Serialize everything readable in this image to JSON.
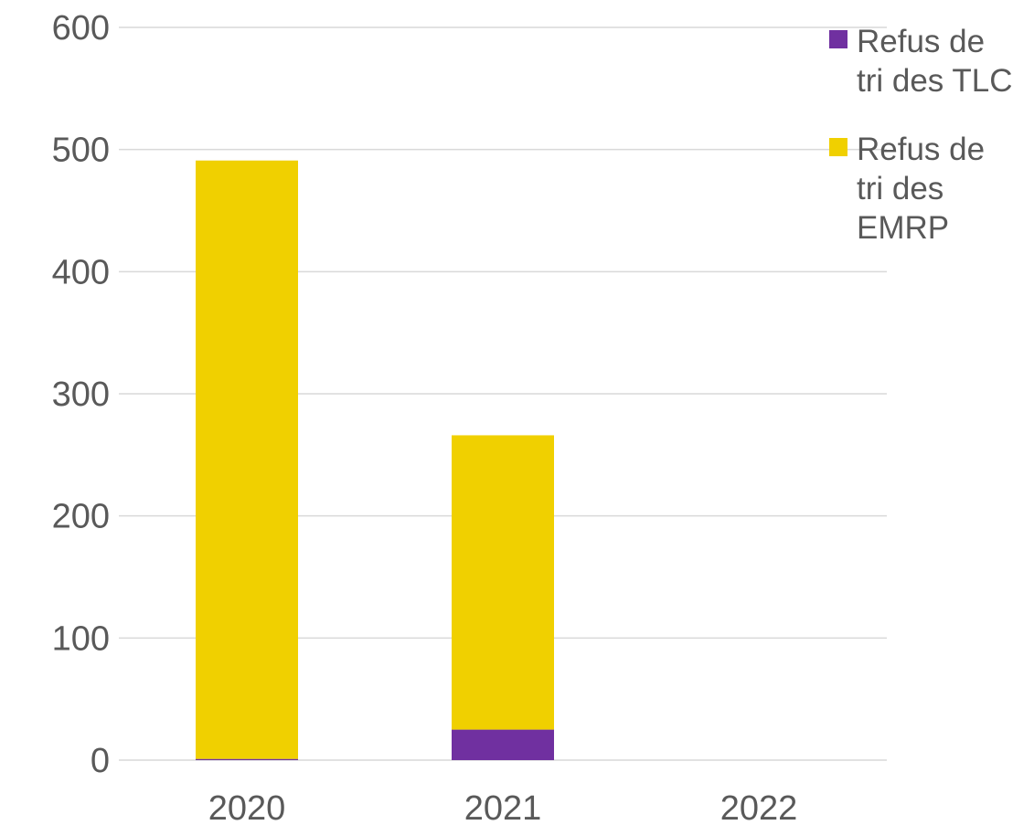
{
  "chart_data": {
    "type": "bar",
    "stacked": true,
    "categories": [
      "2020",
      "2021",
      "2022"
    ],
    "series": [
      {
        "name": "Refus de tri des TLC",
        "name_lines": [
          "Refus de",
          "tri des TLC"
        ],
        "color": "#7030a0",
        "values": [
          1,
          25,
          0
        ]
      },
      {
        "name": "Refus de tri des EMRP",
        "name_lines": [
          "Refus de",
          "tri des",
          "EMRP"
        ],
        "color": "#f0d000",
        "values": [
          490,
          241,
          0
        ]
      }
    ],
    "ylim": [
      0,
      600
    ],
    "yticks": [
      0,
      100,
      200,
      300,
      400,
      500,
      600
    ],
    "grid": true,
    "legend_position": "top-right",
    "title": "",
    "xlabel": "",
    "ylabel": ""
  }
}
